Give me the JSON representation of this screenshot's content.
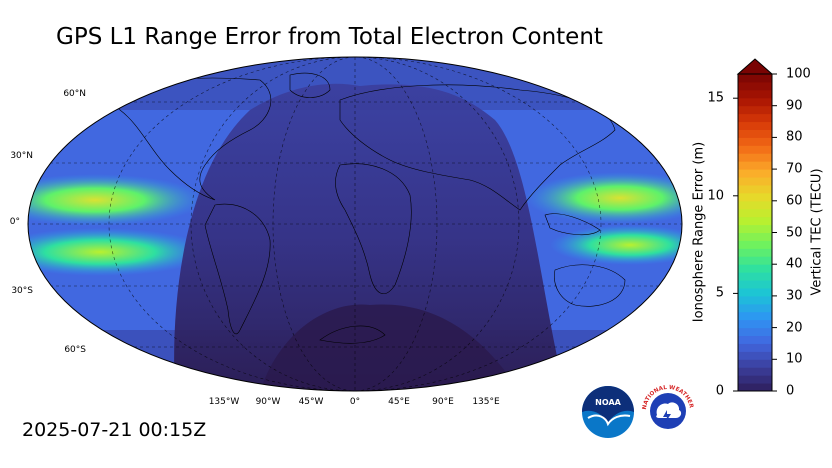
{
  "title": "GPS L1 Range Error from Total Electron Content",
  "timestamp": "2025-07-21 00:15Z",
  "map": {
    "projection": "robinson",
    "lat_labels": [
      "60°N",
      "30°N",
      "0°",
      "30°S",
      "60°S"
    ],
    "lon_labels": [
      "135°W",
      "90°W",
      "45°W",
      "0°",
      "45°E",
      "90°E",
      "135°E"
    ],
    "night_shading": true
  },
  "colorbar": {
    "left_label": "Ionosphere Range Error (m)",
    "right_label": "Vertical TEC (TECU)",
    "left_ticks": [
      "0",
      "5",
      "10",
      "15"
    ],
    "right_ticks": [
      "0",
      "10",
      "20",
      "30",
      "40",
      "50",
      "60",
      "70",
      "80",
      "90",
      "100"
    ],
    "tec_range": [
      0,
      100
    ],
    "range_error_per_tecu": 0.1624,
    "extend": "max",
    "colors": [
      "#2e1e5b",
      "#3b3f9e",
      "#4168e0",
      "#2e95f2",
      "#1cc4d6",
      "#2ee0a0",
      "#6ef25f",
      "#b9f02f",
      "#e8d82a",
      "#fbab2a",
      "#f26b16",
      "#d83a08",
      "#a81402",
      "#7a0403"
    ]
  },
  "logos": {
    "noaa": {
      "name": "noaa-logo",
      "text": "NOAA"
    },
    "nws": {
      "name": "nws-logo",
      "text": "NATIONAL WEATHER SERVICE"
    }
  }
}
